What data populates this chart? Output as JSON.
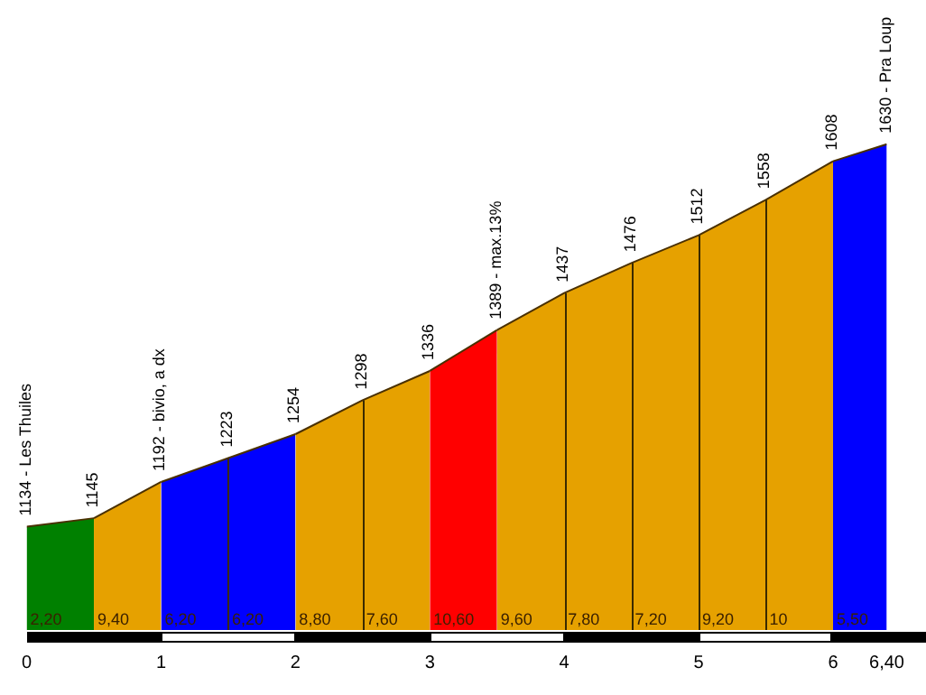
{
  "chart_data": {
    "type": "area",
    "series": [
      {
        "color": "#008000",
        "x": [
          0,
          0.5
        ],
        "values": [
          1134,
          1145
        ],
        "value_labels": [
          "1134 - Les Thuiles",
          "1145"
        ]
      },
      {
        "color": "#e6a100",
        "x": [
          0.5,
          1
        ],
        "values": [
          1145,
          1192
        ],
        "value_labels": [
          null,
          "1192 - bivio, a dx"
        ]
      },
      {
        "color": "#0000ff",
        "x": [
          1,
          1.5,
          2
        ],
        "values": [
          1192,
          1223,
          1254
        ],
        "value_labels": [
          null,
          "1223",
          "1254"
        ]
      },
      {
        "color": "#e6a100",
        "x": [
          2,
          2.5,
          3
        ],
        "values": [
          1254,
          1298,
          1336
        ],
        "value_labels": [
          null,
          "1298",
          "1336"
        ]
      },
      {
        "color": "#ff0000",
        "x": [
          3,
          3.5
        ],
        "values": [
          1336,
          1389
        ],
        "value_labels": [
          null,
          "1389 - max.13%"
        ]
      },
      {
        "color": "#e6a100",
        "x": [
          3.5,
          4,
          4.5,
          5,
          5.5,
          6
        ],
        "values": [
          1389,
          1437,
          1476,
          1512,
          1558,
          1608
        ],
        "value_labels": [
          null,
          "1437",
          "1476",
          "1512",
          "1558",
          "1608"
        ]
      },
      {
        "color": "#0000ff",
        "x": [
          6,
          6.4
        ],
        "values": [
          1608,
          1630
        ],
        "value_labels": [
          null,
          "1630 - Pra Loup"
        ]
      }
    ],
    "xlim": [
      0,
      6.4
    ],
    "xticks": [
      0,
      1,
      2,
      3,
      4,
      5,
      6,
      {
        "value": 6.4,
        "label": "6,40"
      }
    ],
    "tick_labels": "x",
    "annotations": [
      "2,20",
      "9,40",
      "6,20",
      "6,20",
      "8,80",
      "7,60",
      "10,60",
      "9,60",
      "7,80",
      "7,20",
      "9,20",
      "10",
      "5,50"
    ]
  }
}
